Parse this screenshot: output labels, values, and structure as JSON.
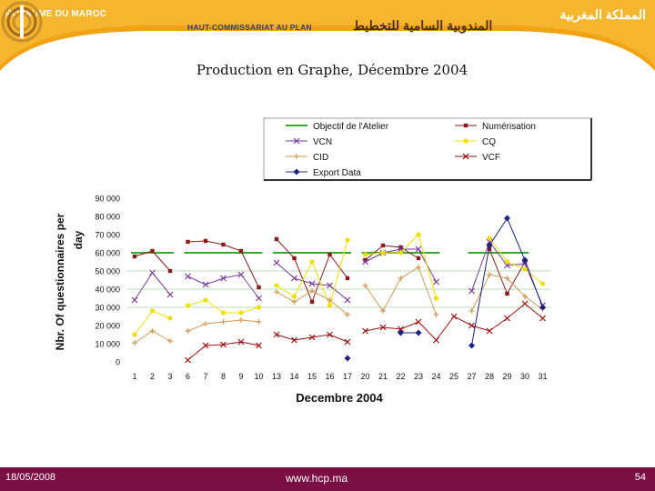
{
  "header": {
    "kingdom_fr": "ROYAUME DU MAROC",
    "kingdom_ar": "المملكة المغربية",
    "hcp_fr": "HAUT-COMMISSARIAT AU PLAN",
    "hcp_ar": "المندوبية السامية للتخطيط",
    "brand_color": "#f2a312",
    "accent_color": "#7a0f43"
  },
  "title": "Production en Graphe, Décembre 2004",
  "chart_data": {
    "type": "line",
    "xlabel": "Decembre 2004",
    "ylabel": "Nbr. Of questionnaires per day",
    "ylim": [
      0,
      90000
    ],
    "yticks": [
      0,
      10000,
      20000,
      30000,
      40000,
      50000,
      60000,
      70000,
      80000,
      90000
    ],
    "ytick_labels": [
      "0",
      "10 000",
      "20 000",
      "30 000",
      "40 000",
      "50 000",
      "60 000",
      "70 000",
      "80 000",
      "90 000"
    ],
    "categories": [
      "1",
      "2",
      "3",
      "6",
      "7",
      "8",
      "9",
      "10",
      "13",
      "14",
      "15",
      "16",
      "17",
      "20",
      "21",
      "22",
      "23",
      "24",
      "25",
      "27",
      "28",
      "29",
      "30",
      "31"
    ],
    "series": [
      {
        "name": "Objectif de l'Atelier",
        "color": "#3aaa35",
        "marker": "none",
        "values": [
          60000,
          60000,
          60000,
          60000,
          60000,
          60000,
          60000,
          60000,
          60000,
          60000,
          60000,
          60000,
          60000,
          60000,
          60000,
          60000,
          60000,
          60000,
          null,
          60000,
          60000,
          60000,
          60000,
          null
        ]
      },
      {
        "name": "Numérisation",
        "color": "#8b1a1a",
        "marker": "square",
        "values": [
          58000,
          61000,
          50000,
          66000,
          66500,
          64500,
          61000,
          41000,
          67500,
          57000,
          33000,
          59000,
          46000,
          56000,
          64000,
          63000,
          57000,
          null,
          null,
          null,
          62000,
          37500,
          55000,
          null
        ]
      },
      {
        "name": "VCN",
        "color": "#7a3a9a",
        "marker": "x",
        "values": [
          34000,
          49000,
          37000,
          47000,
          42500,
          46000,
          48000,
          35000,
          54500,
          46000,
          43000,
          42000,
          34000,
          55000,
          60000,
          62000,
          62000,
          44000,
          null,
          39000,
          66000,
          53000,
          54000,
          31000
        ]
      },
      {
        "name": "CQ",
        "color": "#f0e000",
        "marker": "circle",
        "values": [
          15000,
          28000,
          24000,
          31000,
          34000,
          27000,
          27000,
          30000,
          42000,
          36000,
          55000,
          31000,
          67000,
          59000,
          60000,
          60000,
          70000,
          35000,
          null,
          null,
          68000,
          55000,
          51000,
          43000
        ]
      },
      {
        "name": "CID",
        "color": "#d49a55",
        "marker": "plus",
        "values": [
          10500,
          17000,
          11500,
          17000,
          21000,
          22000,
          23000,
          22000,
          38500,
          33000,
          39000,
          34000,
          26000,
          42000,
          28000,
          46000,
          52000,
          26000,
          null,
          28000,
          48000,
          46000,
          36000,
          29000
        ]
      },
      {
        "name": "VCF",
        "color": "#a01010",
        "marker": "x",
        "values": [
          null,
          null,
          null,
          1000,
          9000,
          9500,
          11000,
          9000,
          15000,
          12000,
          13500,
          15000,
          11000,
          17000,
          19000,
          18000,
          22000,
          12000,
          25000,
          20000,
          17000,
          24000,
          32000,
          24000
        ]
      },
      {
        "name": "Export Data",
        "color": "#1a237e",
        "marker": "diamond",
        "values": [
          null,
          null,
          null,
          null,
          null,
          null,
          null,
          null,
          null,
          null,
          null,
          null,
          2000,
          null,
          null,
          16000,
          16000,
          null,
          null,
          9000,
          64000,
          79000,
          56000,
          30000
        ]
      }
    ],
    "legend_position": "top-right"
  },
  "footer": {
    "date": "18/05/2008",
    "url": "www.hcp.ma",
    "page": "54"
  }
}
